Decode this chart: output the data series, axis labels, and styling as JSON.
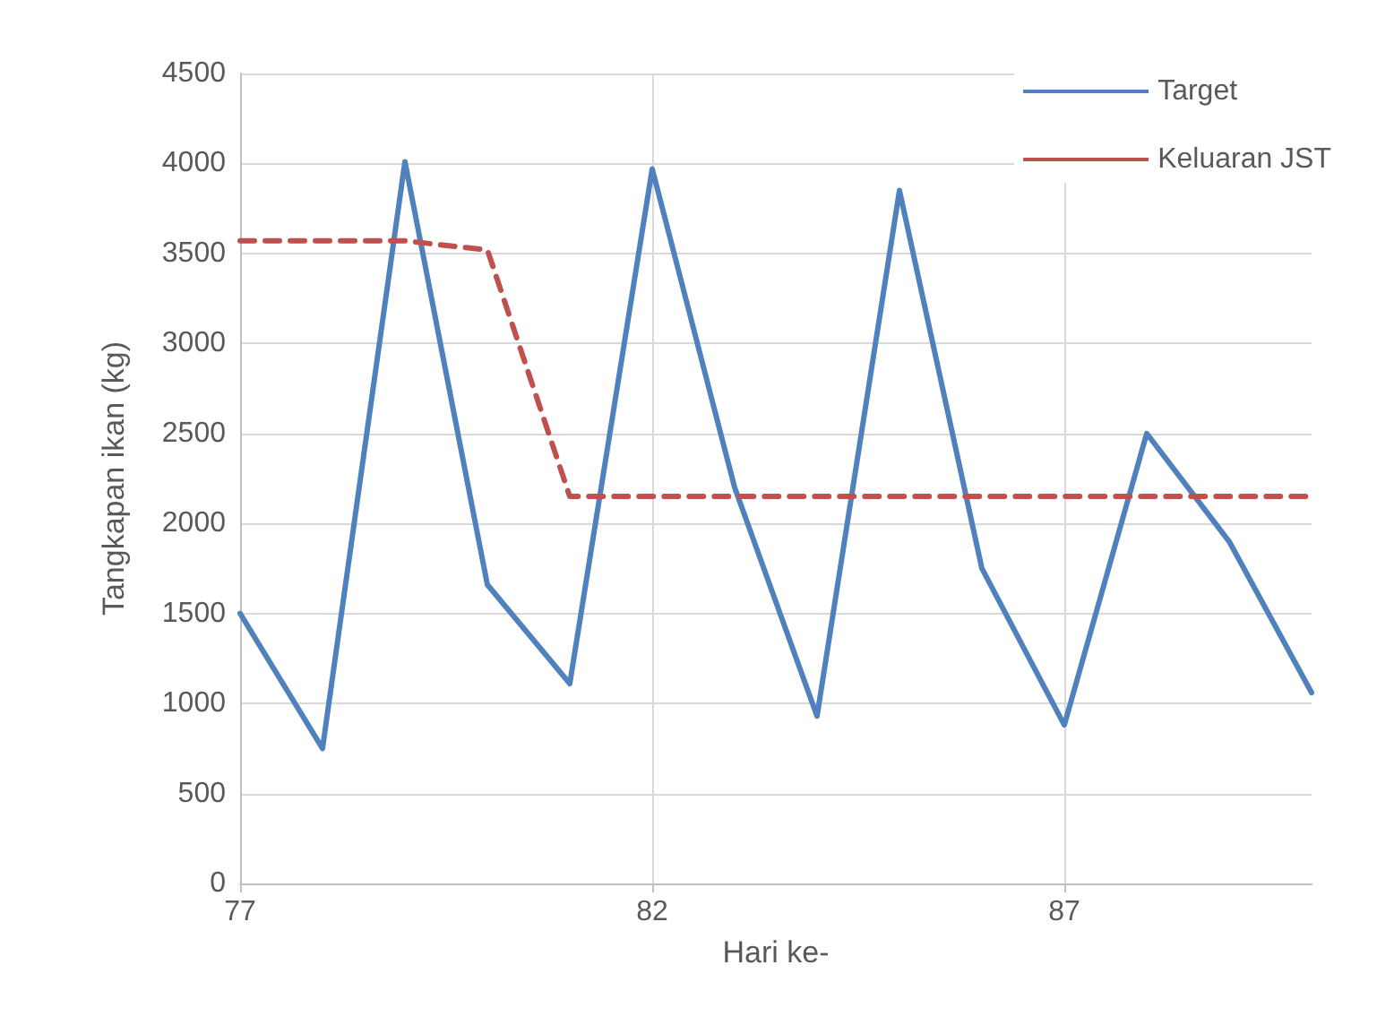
{
  "chart_data": {
    "type": "line",
    "xlabel": "Hari ke-",
    "ylabel": "Tangkapan ikan (kg)",
    "x": [
      77,
      78,
      79,
      80,
      81,
      82,
      83,
      84,
      85,
      86,
      87,
      88,
      89,
      90
    ],
    "xlim": [
      77,
      90
    ],
    "xticks": [
      77,
      82,
      87
    ],
    "ylim": [
      0,
      4500
    ],
    "yticks": [
      0,
      500,
      1000,
      1500,
      2000,
      2500,
      3000,
      3500,
      4000,
      4500
    ],
    "grid": true,
    "legend": "top right",
    "marker": "none",
    "series": [
      {
        "name": "Target",
        "color": "#4f81bd",
        "line_style": "solid",
        "values": [
          1500,
          750,
          4010,
          1660,
          1110,
          3970,
          2200,
          930,
          3850,
          1750,
          880,
          2500,
          1900,
          1060
        ]
      },
      {
        "name": "Keluaran JST",
        "color": "#c0504d",
        "line_style": "dashed",
        "values": [
          3570,
          3570,
          3570,
          3520,
          2150,
          2150,
          2150,
          2150,
          2150,
          2150,
          2150,
          2150,
          2150,
          2150
        ]
      }
    ]
  }
}
